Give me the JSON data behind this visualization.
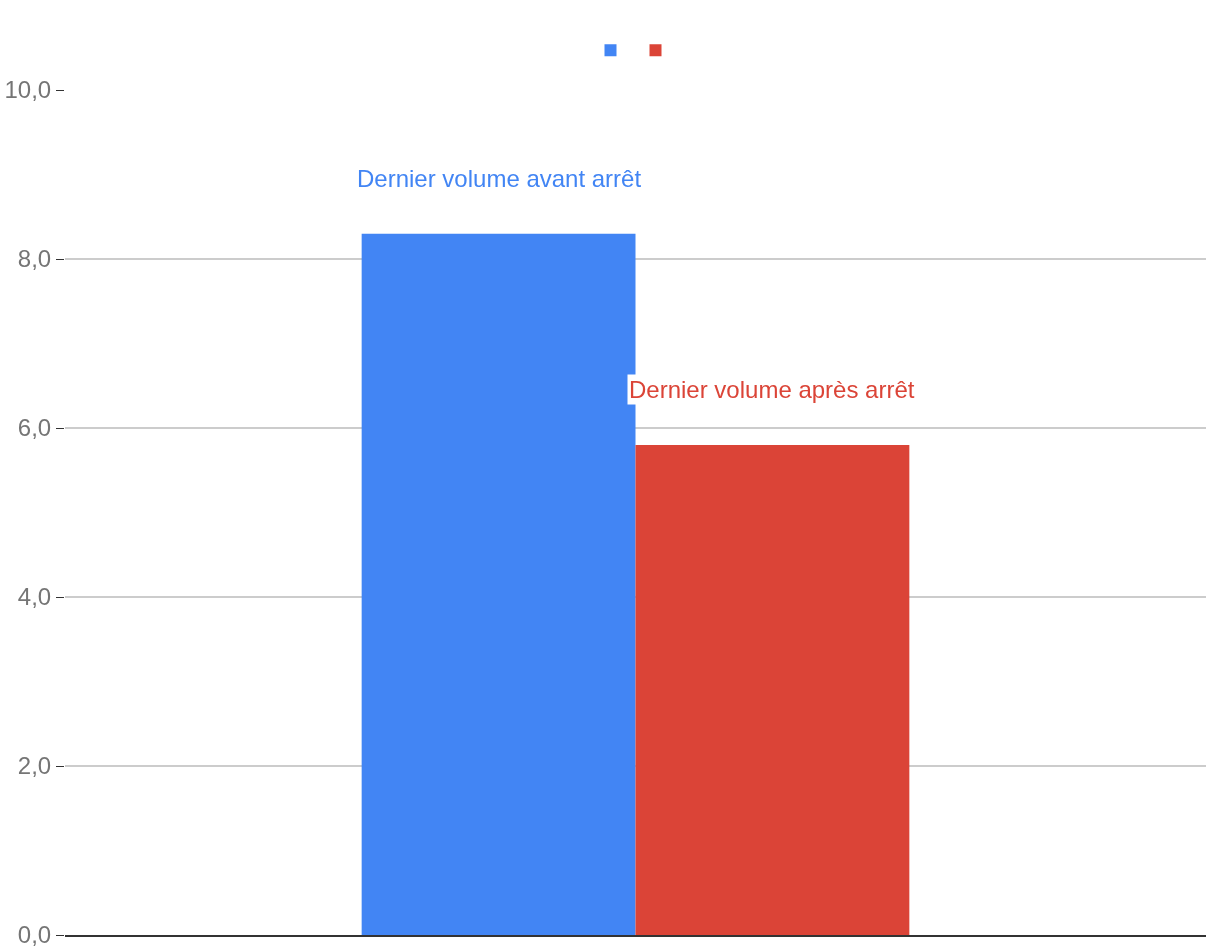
{
  "chart_data": {
    "type": "bar",
    "categories": [
      null
    ],
    "series": [
      {
        "name": "Dernier volume avant arrêt",
        "color": "#4285f4",
        "values": [
          8.3
        ]
      },
      {
        "name": "Dernier volume après arrêt",
        "color": "#db4437",
        "values": [
          5.8
        ]
      }
    ],
    "ylim": [
      0,
      10
    ],
    "yticks": [
      {
        "value": 0,
        "label": "0,0"
      },
      {
        "value": 2,
        "label": "2,0"
      },
      {
        "value": 4,
        "label": "4,0"
      },
      {
        "value": 6,
        "label": "6,0"
      },
      {
        "value": 8,
        "label": "8,0"
      },
      {
        "value": 10,
        "label": "10,0"
      }
    ],
    "grid": "y",
    "legend": "top"
  }
}
